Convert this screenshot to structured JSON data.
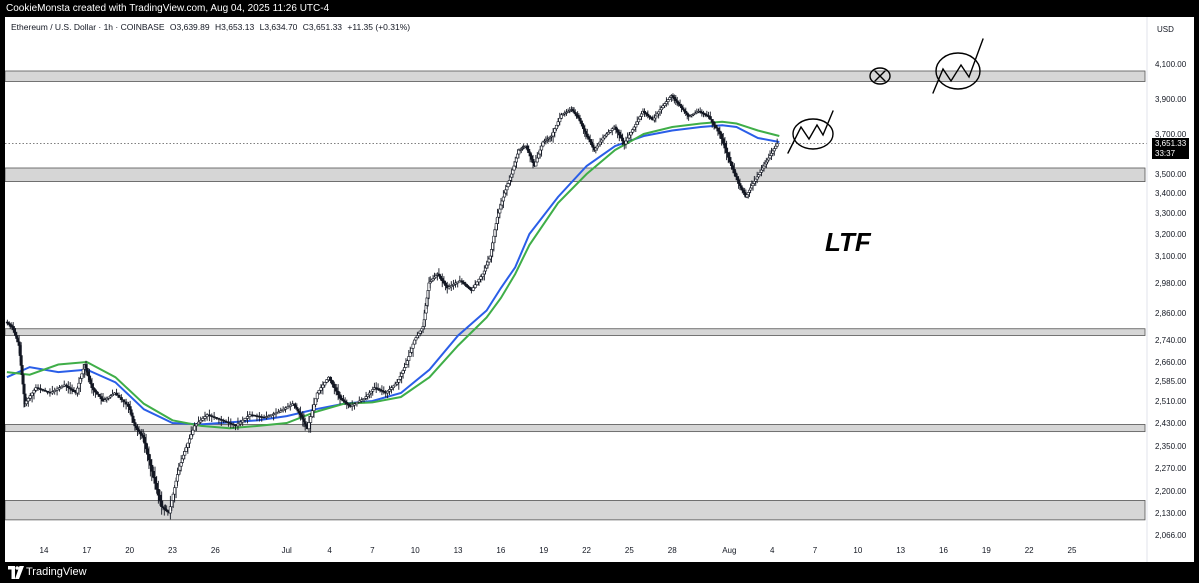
{
  "header": {
    "credit": "CookieMonsta created with TradingView.com, Aug 04, 2025 11:26 UTC-4"
  },
  "legend": {
    "symbol": "Ethereum / U.S. Dollar · 1h · COINBASE",
    "open": "O3,639.89",
    "high": "H3,653.13",
    "low": "L3,634.70",
    "close": "C3,651.33",
    "change": "+11.35 (+0.31%)"
  },
  "price_tag": {
    "price": "3,651.33",
    "countdown": "33:37"
  },
  "annotation": {
    "ltf": "LTF"
  },
  "footer": {
    "brand": "TradingView"
  },
  "colors": {
    "sma_blue": "#2a5ee8",
    "ema_green": "#3fae48",
    "zone_fill": "#d6d6d6",
    "candle": "#131722"
  },
  "chart_data": {
    "type": "candlestick",
    "title": "Ethereum / U.S. Dollar · 1h · COINBASE",
    "currency_label": "USD",
    "y_ticks": [
      "4,100.00",
      "3,900.00",
      "3,700.00",
      "3,500.00",
      "3,400.00",
      "3,300.00",
      "3,200.00",
      "3,100.00",
      "2,980.00",
      "2,860.00",
      "2,740.00",
      "2,660.00",
      "2,585.00",
      "2,510.00",
      "2,430.00",
      "2,350.00",
      "2,270.00",
      "2,200.00",
      "2,130.00",
      "2,066.00"
    ],
    "y_tick_values": [
      4100,
      3900,
      3700,
      3500,
      3400,
      3300,
      3200,
      3100,
      2980,
      2860,
      2740,
      2660,
      2585,
      2510,
      2430,
      2350,
      2270,
      2200,
      2130,
      2066
    ],
    "x_ticks": [
      "14",
      "17",
      "20",
      "23",
      "26",
      "Jul",
      "4",
      "7",
      "10",
      "13",
      "16",
      "19",
      "22",
      "25",
      "28",
      "Aug",
      "4",
      "7",
      "10",
      "13",
      "16",
      "19",
      "22",
      "25"
    ],
    "x_tick_days": [
      14,
      17,
      20,
      23,
      26,
      31,
      34,
      37,
      40,
      43,
      46,
      49,
      52,
      55,
      58,
      62,
      65,
      68,
      71,
      74,
      77,
      80,
      83,
      86
    ],
    "current_price": 3651.33,
    "zones": [
      {
        "low": 4000,
        "high": 4060
      },
      {
        "low": 3460,
        "high": 3530
      },
      {
        "low": 2760,
        "high": 2790
      },
      {
        "low": 2400,
        "high": 2425
      },
      {
        "low": 2110,
        "high": 2170
      }
    ],
    "price_path": [
      [
        11.4,
        2820
      ],
      [
        11.8,
        2800
      ],
      [
        12.3,
        2720
      ],
      [
        12.7,
        2500
      ],
      [
        13.5,
        2560
      ],
      [
        14.5,
        2540
      ],
      [
        15.5,
        2570
      ],
      [
        16.3,
        2540
      ],
      [
        16.9,
        2650
      ],
      [
        17.4,
        2560
      ],
      [
        18.2,
        2510
      ],
      [
        19.0,
        2540
      ],
      [
        20.0,
        2490
      ],
      [
        20.4,
        2420
      ],
      [
        21.0,
        2380
      ],
      [
        21.6,
        2260
      ],
      [
        22.3,
        2150
      ],
      [
        22.8,
        2130
      ],
      [
        23.4,
        2250
      ],
      [
        23.9,
        2330
      ],
      [
        24.6,
        2420
      ],
      [
        25.5,
        2460
      ],
      [
        26.5,
        2440
      ],
      [
        27.5,
        2420
      ],
      [
        28.5,
        2460
      ],
      [
        29.5,
        2450
      ],
      [
        30.5,
        2470
      ],
      [
        31.5,
        2500
      ],
      [
        32.0,
        2460
      ],
      [
        32.5,
        2410
      ],
      [
        33.2,
        2540
      ],
      [
        34.0,
        2600
      ],
      [
        34.8,
        2520
      ],
      [
        35.5,
        2490
      ],
      [
        36.5,
        2520
      ],
      [
        37.2,
        2560
      ],
      [
        38.0,
        2540
      ],
      [
        38.8,
        2580
      ],
      [
        39.4,
        2650
      ],
      [
        40.0,
        2740
      ],
      [
        40.6,
        2800
      ],
      [
        41.0,
        2980
      ],
      [
        41.6,
        3020
      ],
      [
        42.3,
        2960
      ],
      [
        43.2,
        2990
      ],
      [
        44.0,
        2950
      ],
      [
        44.8,
        3020
      ],
      [
        45.3,
        3100
      ],
      [
        45.8,
        3280
      ],
      [
        46.3,
        3400
      ],
      [
        46.8,
        3500
      ],
      [
        47.3,
        3620
      ],
      [
        47.8,
        3640
      ],
      [
        48.4,
        3540
      ],
      [
        49.0,
        3660
      ],
      [
        49.6,
        3690
      ],
      [
        50.3,
        3810
      ],
      [
        51.0,
        3840
      ],
      [
        51.5,
        3790
      ],
      [
        52.0,
        3700
      ],
      [
        52.6,
        3620
      ],
      [
        53.2,
        3680
      ],
      [
        54.0,
        3740
      ],
      [
        54.7,
        3650
      ],
      [
        55.4,
        3740
      ],
      [
        56.0,
        3830
      ],
      [
        56.7,
        3780
      ],
      [
        57.3,
        3850
      ],
      [
        58.0,
        3920
      ],
      [
        58.6,
        3860
      ],
      [
        59.2,
        3800
      ],
      [
        59.9,
        3830
      ],
      [
        60.6,
        3800
      ],
      [
        61.4,
        3700
      ],
      [
        62.1,
        3560
      ],
      [
        62.7,
        3450
      ],
      [
        63.2,
        3380
      ],
      [
        63.7,
        3450
      ],
      [
        64.3,
        3520
      ],
      [
        64.8,
        3580
      ],
      [
        65.4,
        3651
      ]
    ],
    "series": [
      {
        "name": "",
        "color_key": "sma_blue",
        "points": [
          [
            11.4,
            2600
          ],
          [
            13,
            2640
          ],
          [
            15,
            2620
          ],
          [
            17,
            2630
          ],
          [
            19,
            2580
          ],
          [
            21,
            2480
          ],
          [
            23,
            2430
          ],
          [
            25,
            2425
          ],
          [
            27,
            2432
          ],
          [
            29,
            2440
          ],
          [
            31,
            2455
          ],
          [
            33,
            2480
          ],
          [
            35,
            2500
          ],
          [
            37,
            2510
          ],
          [
            39,
            2540
          ],
          [
            41,
            2630
          ],
          [
            43,
            2760
          ],
          [
            45,
            2870
          ],
          [
            46,
            2960
          ],
          [
            47,
            3050
          ],
          [
            48,
            3200
          ],
          [
            50,
            3380
          ],
          [
            52,
            3540
          ],
          [
            54,
            3640
          ],
          [
            56,
            3690
          ],
          [
            58,
            3720
          ],
          [
            60,
            3740
          ],
          [
            61.5,
            3750
          ],
          [
            62.5,
            3740
          ],
          [
            64,
            3680
          ],
          [
            65.5,
            3660
          ]
        ]
      },
      {
        "name": "",
        "color_key": "ema_green",
        "points": [
          [
            11.4,
            2620
          ],
          [
            13,
            2610
          ],
          [
            15,
            2650
          ],
          [
            17,
            2660
          ],
          [
            19,
            2600
          ],
          [
            21,
            2500
          ],
          [
            23,
            2440
          ],
          [
            25,
            2420
          ],
          [
            27,
            2412
          ],
          [
            29,
            2420
          ],
          [
            31,
            2430
          ],
          [
            33,
            2470
          ],
          [
            35,
            2500
          ],
          [
            37,
            2505
          ],
          [
            39,
            2525
          ],
          [
            41,
            2600
          ],
          [
            43,
            2720
          ],
          [
            45,
            2840
          ],
          [
            46,
            2920
          ],
          [
            47,
            3020
          ],
          [
            48,
            3150
          ],
          [
            50,
            3350
          ],
          [
            52,
            3500
          ],
          [
            54,
            3620
          ],
          [
            56,
            3700
          ],
          [
            58,
            3740
          ],
          [
            60,
            3760
          ],
          [
            61.5,
            3770
          ],
          [
            62.5,
            3760
          ],
          [
            64,
            3720
          ],
          [
            65.5,
            3690
          ]
        ]
      }
    ]
  }
}
